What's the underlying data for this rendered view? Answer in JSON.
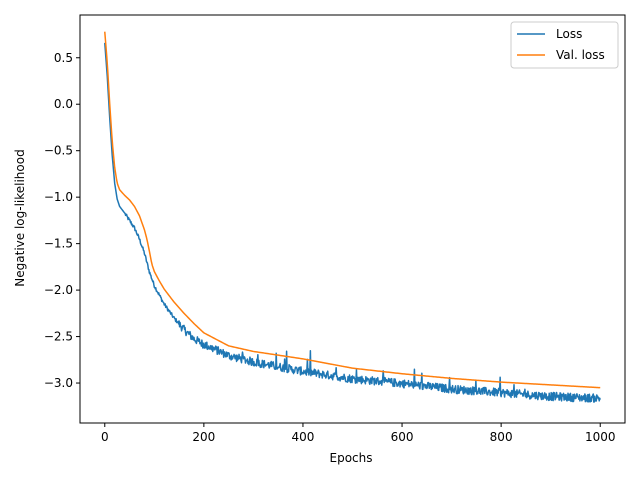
{
  "chart_data": {
    "type": "line",
    "title": "",
    "xlabel": "Epochs",
    "ylabel": "Negative log-likelihood",
    "xlim": [
      -50,
      1050
    ],
    "ylim": [
      -3.43,
      0.96
    ],
    "x_ticks": [
      0,
      200,
      400,
      600,
      800,
      1000
    ],
    "x_tick_labels": [
      "0",
      "200",
      "400",
      "600",
      "800",
      "1000"
    ],
    "y_ticks": [
      0.5,
      0.0,
      -0.5,
      -1.0,
      -1.5,
      -2.0,
      -2.5,
      -3.0
    ],
    "y_tick_labels": [
      "0.5",
      "0.0",
      "−0.5",
      "−1.0",
      "−1.5",
      "−2.0",
      "−2.5",
      "−3.0"
    ],
    "grid": false,
    "legend": {
      "position": "top-right",
      "entries": [
        "Loss",
        "Val. loss"
      ]
    },
    "series": [
      {
        "name": "Loss",
        "color": "#1f77b4",
        "noisy": true,
        "x": [
          0,
          5,
          10,
          15,
          20,
          25,
          30,
          40,
          50,
          60,
          70,
          80,
          90,
          100,
          110,
          120,
          140,
          160,
          180,
          200,
          250,
          300,
          400,
          500,
          600,
          700,
          800,
          900,
          1000
        ],
        "y": [
          0.66,
          0.3,
          -0.15,
          -0.55,
          -0.85,
          -1.02,
          -1.1,
          -1.17,
          -1.25,
          -1.33,
          -1.45,
          -1.6,
          -1.8,
          -1.95,
          -2.05,
          -2.15,
          -2.3,
          -2.42,
          -2.52,
          -2.58,
          -2.7,
          -2.77,
          -2.87,
          -2.95,
          -3.0,
          -3.06,
          -3.1,
          -3.14,
          -3.16
        ]
      },
      {
        "name": "Val. loss",
        "color": "#ff7f0e",
        "noisy": false,
        "x": [
          0,
          5,
          10,
          15,
          20,
          25,
          30,
          35,
          40,
          50,
          60,
          70,
          80,
          85,
          90,
          95,
          100,
          110,
          120,
          140,
          160,
          180,
          200,
          250,
          300,
          400,
          500,
          600,
          700,
          800,
          900,
          1000
        ],
        "y": [
          0.78,
          0.45,
          0.0,
          -0.4,
          -0.68,
          -0.85,
          -0.92,
          -0.95,
          -0.98,
          -1.03,
          -1.1,
          -1.2,
          -1.35,
          -1.45,
          -1.58,
          -1.72,
          -1.8,
          -1.9,
          -1.99,
          -2.13,
          -2.25,
          -2.36,
          -2.46,
          -2.6,
          -2.66,
          -2.74,
          -2.84,
          -2.9,
          -2.95,
          -2.99,
          -3.02,
          -3.05
        ]
      }
    ]
  }
}
